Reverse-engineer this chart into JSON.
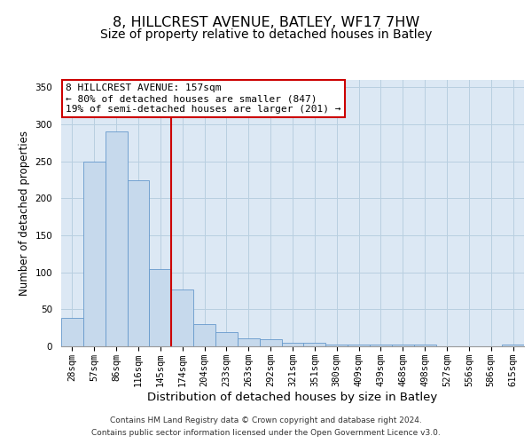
{
  "title": "8, HILLCREST AVENUE, BATLEY, WF17 7HW",
  "subtitle": "Size of property relative to detached houses in Batley",
  "xlabel": "Distribution of detached houses by size in Batley",
  "ylabel": "Number of detached properties",
  "bin_labels": [
    "28sqm",
    "57sqm",
    "86sqm",
    "116sqm",
    "145sqm",
    "174sqm",
    "204sqm",
    "233sqm",
    "263sqm",
    "292sqm",
    "321sqm",
    "351sqm",
    "380sqm",
    "409sqm",
    "439sqm",
    "468sqm",
    "498sqm",
    "527sqm",
    "556sqm",
    "586sqm",
    "615sqm"
  ],
  "bar_values": [
    38,
    250,
    291,
    225,
    104,
    77,
    30,
    19,
    11,
    10,
    5,
    5,
    3,
    3,
    2,
    2,
    2,
    0,
    0,
    0,
    3
  ],
  "bar_color": "#c6d9ec",
  "bar_edgecolor": "#6699cc",
  "vline_color": "#cc0000",
  "vline_x": 4.5,
  "annotation_text": "8 HILLCREST AVENUE: 157sqm\n← 80% of detached houses are smaller (847)\n19% of semi-detached houses are larger (201) →",
  "annotation_box_color": "#ffffff",
  "annotation_box_edgecolor": "#cc0000",
  "ylim": [
    0,
    360
  ],
  "yticks": [
    0,
    50,
    100,
    150,
    200,
    250,
    300,
    350
  ],
  "grid_color": "#b8cfe0",
  "background_color": "#dce8f4",
  "footer_line1": "Contains HM Land Registry data © Crown copyright and database right 2024.",
  "footer_line2": "Contains public sector information licensed under the Open Government Licence v3.0.",
  "title_fontsize": 11.5,
  "subtitle_fontsize": 10,
  "xlabel_fontsize": 9.5,
  "ylabel_fontsize": 8.5,
  "tick_fontsize": 7.5,
  "annotation_fontsize": 8,
  "footer_fontsize": 6.5
}
